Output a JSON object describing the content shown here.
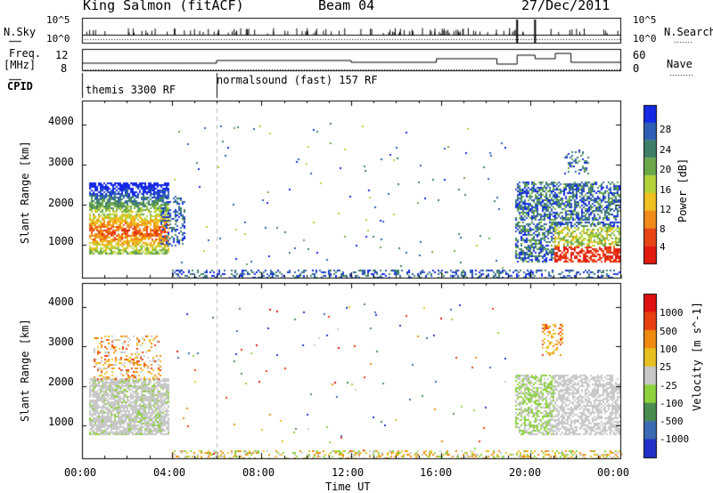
{
  "header": {
    "station": "King Salmon (fitACF)",
    "beam": "Beam 04",
    "date": "27/Dec/2011"
  },
  "sky_panel": {
    "left_label": "N.Sky",
    "right_label": "N.Search",
    "ticks": [
      "10^5",
      "10^0"
    ]
  },
  "freq_panel": {
    "left_label_1": "Freq.",
    "left_label_2": "[MHz]",
    "left_ticks": [
      "12",
      "8"
    ],
    "right_label": "Nave",
    "right_ticks": [
      "60",
      "0"
    ]
  },
  "cpid": {
    "label": "CPID",
    "programs": [
      {
        "name": "themis 3300 RF",
        "start_hour": 0
      },
      {
        "name": "normalsound (fast) 157 RF",
        "start_hour": 6
      }
    ]
  },
  "chart_data": [
    {
      "type": "heatmap",
      "title": "Power [dB]",
      "ylabel": "Slant Range [km]",
      "y_ticks": [
        1000,
        2000,
        3000,
        4000
      ],
      "ylim": [
        180,
        4600
      ],
      "xlim_hours": [
        0,
        24
      ],
      "colorbar": {
        "label": "Power [dB]",
        "tick_labels": [
          "4",
          "8",
          "12",
          "16",
          "20",
          "24",
          "28"
        ],
        "colors": [
          "#1428e6",
          "#2f5fb4",
          "#3f7f6a",
          "#6aa84a",
          "#b4d23a",
          "#f0c020",
          "#f08a18",
          "#e84414",
          "#e21a10"
        ]
      },
      "echo_regions": [
        {
          "hours": [
            0.3,
            3.9
          ],
          "range_km": [
            800,
            2600
          ],
          "level": "high"
        },
        {
          "hours": [
            19.3,
            24
          ],
          "range_km": [
            600,
            2600
          ],
          "level": "high"
        },
        {
          "hours": [
            4,
            24
          ],
          "range_km": [
            200,
            500
          ],
          "level": "low"
        }
      ]
    },
    {
      "type": "heatmap",
      "title": "Velocity [m s^-1]",
      "ylabel": "Slant Range [km]",
      "xlabel": "Time UT",
      "y_ticks": [
        1000,
        2000,
        3000,
        4000
      ],
      "x_tick_labels": [
        "00:00",
        "04:00",
        "08:00",
        "12:00",
        "16:00",
        "20:00",
        "00:00"
      ],
      "colorbar": {
        "label": "Velocity [m s^-1]",
        "tick_labels": [
          "1000",
          "500",
          "100",
          "25",
          "-25",
          "-100",
          "-500",
          "-1000"
        ],
        "colors": [
          "#2030c8",
          "#3c6ab4",
          "#4a8c50",
          "#8cd23c",
          "#c8c8c8",
          "#e8c020",
          "#f08a10",
          "#e84010",
          "#e01010"
        ]
      }
    }
  ]
}
